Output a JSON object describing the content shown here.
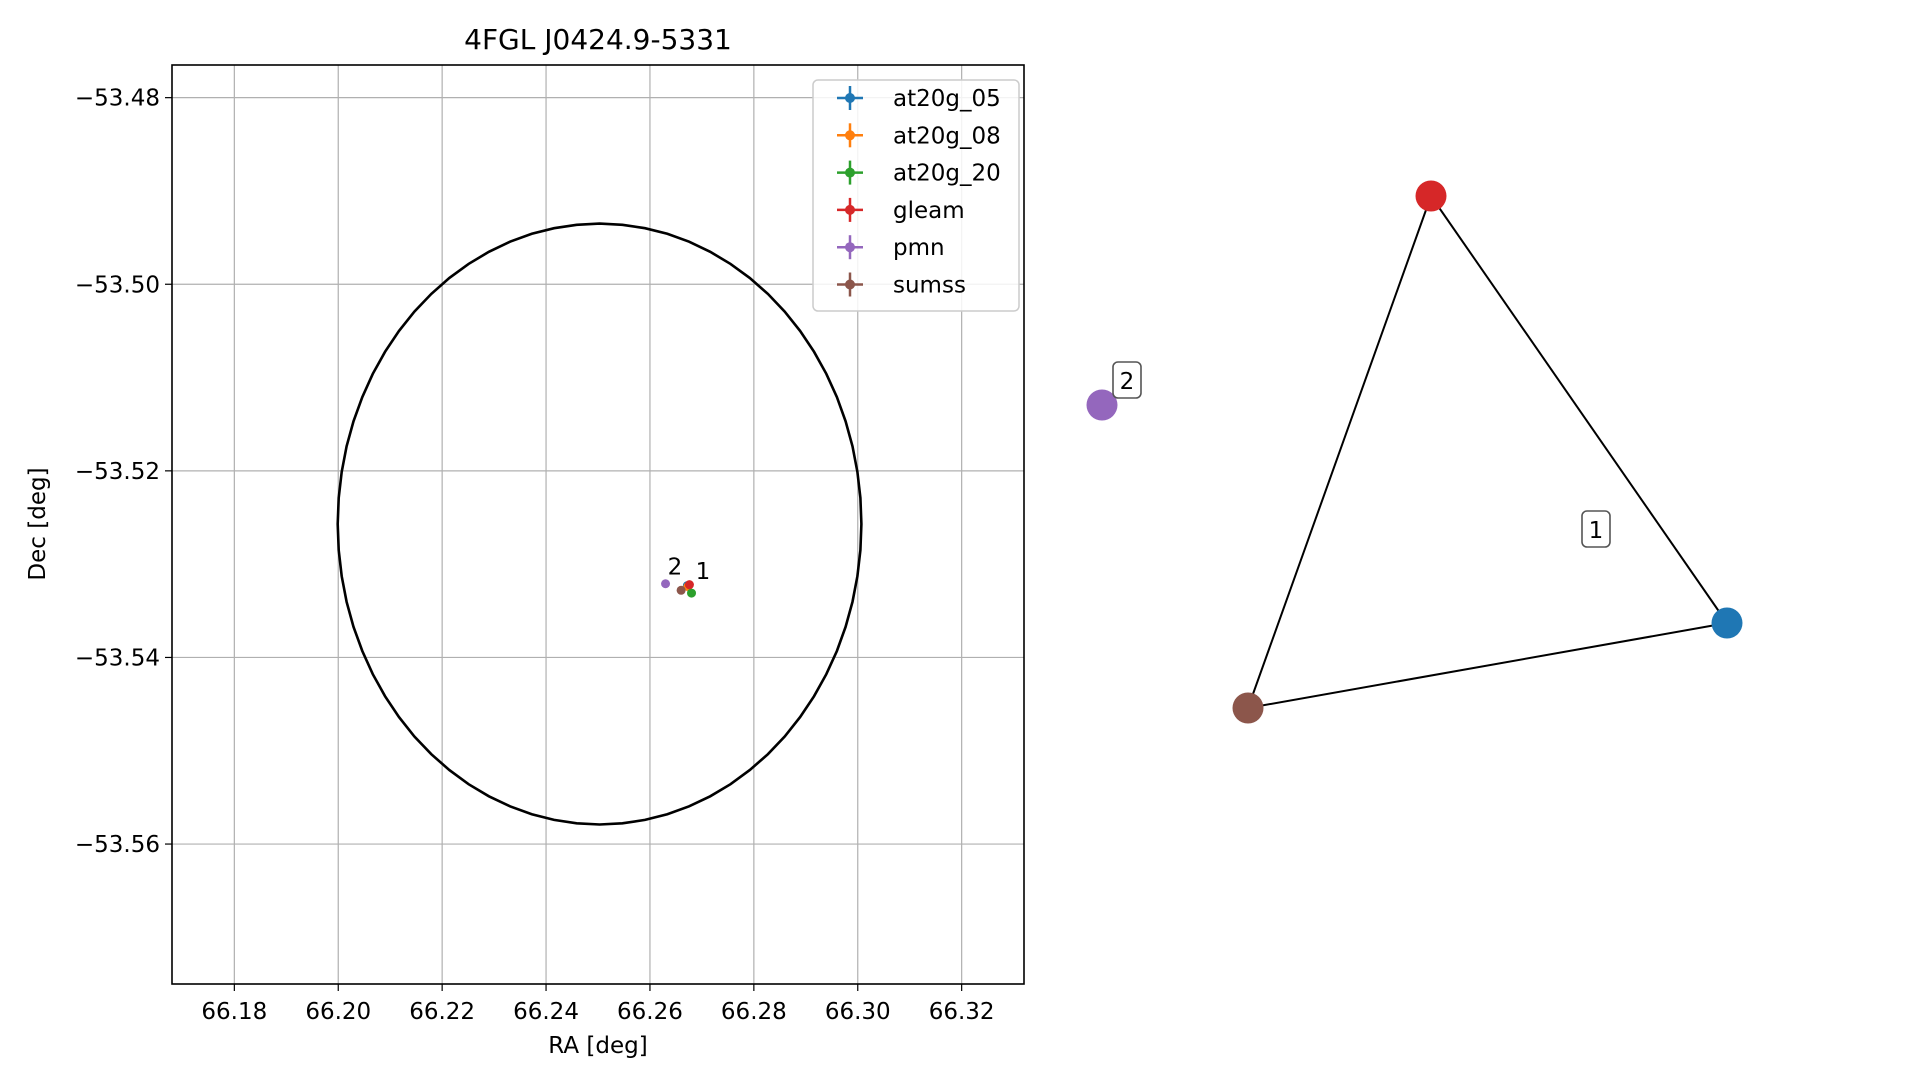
{
  "chart_data": [
    {
      "type": "scatter",
      "title": "4FGL J0424.9-5331",
      "xlabel": "RA [deg]",
      "ylabel": "Dec [deg]",
      "xlim": [
        66.168,
        66.332
      ],
      "ylim": [
        -53.575,
        -53.4765
      ],
      "xticks": [
        66.18,
        66.2,
        66.22,
        66.24,
        66.26,
        66.28,
        66.3,
        66.32
      ],
      "xtick_labels": [
        "66.18",
        "66.20",
        "66.22",
        "66.24",
        "66.26",
        "66.28",
        "66.30",
        "66.32"
      ],
      "yticks": [
        -53.48,
        -53.5,
        -53.52,
        -53.54,
        -53.56
      ],
      "ytick_labels": [
        "−53.48",
        "−53.50",
        "−53.52",
        "−53.54",
        "−53.56"
      ],
      "grid": true,
      "legend_position": "upper-right",
      "ellipse": {
        "center": [
          66.2503,
          -53.5257
        ],
        "semi_axis_ra": 0.0504,
        "semi_axis_dec": 0.0322,
        "color": "#000000"
      },
      "series": [
        {
          "name": "at20g_05",
          "color": "#1f77b4",
          "x": [
            66.2672
          ],
          "y": [
            -53.5323
          ]
        },
        {
          "name": "at20g_08",
          "color": "#ff7f0e",
          "x": [
            66.2673
          ],
          "y": [
            -53.5324
          ]
        },
        {
          "name": "at20g_20",
          "color": "#2ca02c",
          "x": [
            66.268
          ],
          "y": [
            -53.5331
          ]
        },
        {
          "name": "gleam",
          "color": "#d62728",
          "x": [
            66.2676
          ],
          "y": [
            -53.5322
          ]
        },
        {
          "name": "pmn",
          "color": "#9467bd",
          "x": [
            66.263
          ],
          "y": [
            -53.5321
          ]
        },
        {
          "name": "sumss",
          "color": "#8c564b",
          "x": [
            66.266
          ],
          "y": [
            -53.5328
          ]
        }
      ],
      "annotations": [
        {
          "text": "2",
          "x": 66.2634,
          "y": -53.5311
        },
        {
          "text": "1",
          "x": 66.2688,
          "y": -53.5316
        }
      ]
    },
    {
      "type": "network",
      "nodes": [
        {
          "id": "gleam",
          "color": "#d62728"
        },
        {
          "id": "pmn",
          "color": "#9467bd"
        },
        {
          "id": "at20g_05",
          "color": "#1f77b4"
        },
        {
          "id": "sumss",
          "color": "#8c564b"
        }
      ],
      "edges": [
        [
          "gleam",
          "at20g_05"
        ],
        [
          "gleam",
          "sumss"
        ],
        [
          "sumss",
          "at20g_05"
        ]
      ],
      "groups": [
        {
          "label": "1",
          "members": [
            "gleam",
            "at20g_05",
            "sumss"
          ]
        },
        {
          "label": "2",
          "members": [
            "pmn"
          ]
        }
      ]
    }
  ]
}
